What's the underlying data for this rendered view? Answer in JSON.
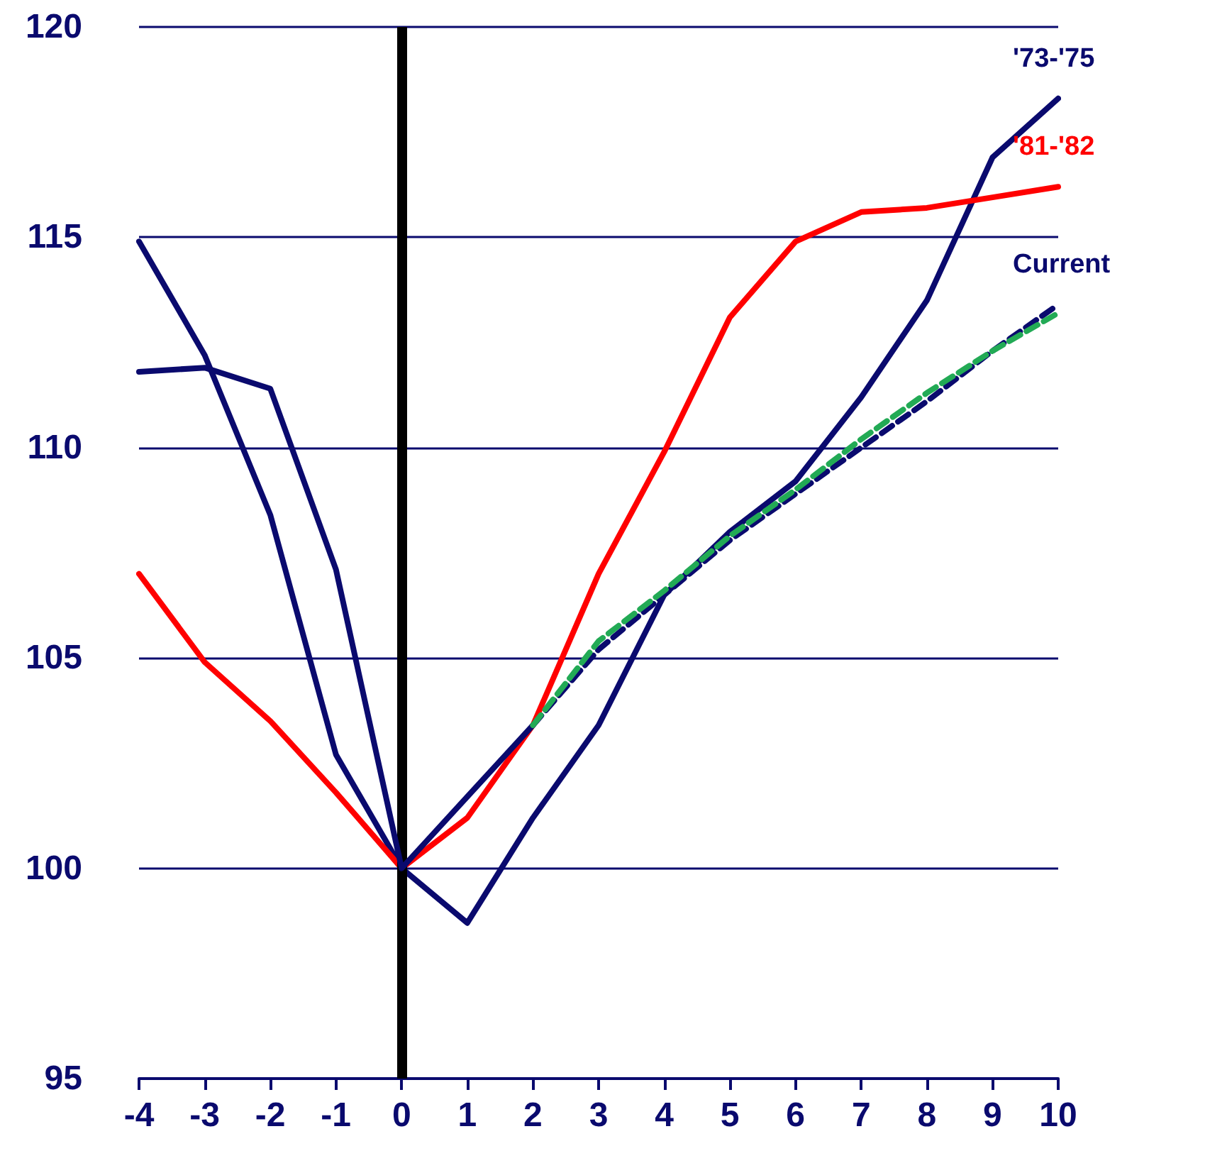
{
  "chart_data": {
    "type": "line",
    "x": [
      -4,
      -3,
      -2,
      -1,
      0,
      1,
      2,
      3,
      4,
      5,
      6,
      7,
      8,
      9,
      10
    ],
    "series": [
      {
        "name": "'73-'75",
        "color": "#0a0a6e",
        "values": [
          114.9,
          112.2,
          108.4,
          102.7,
          100,
          98.7,
          101.2,
          103.4,
          106.5,
          108,
          109.2,
          111.2,
          113.5,
          116.9,
          118.3
        ]
      },
      {
        "name": "'81-'82",
        "color": "#ff0000",
        "values": [
          107,
          104.9,
          103.5,
          101.8,
          100,
          101.2,
          103.4,
          107,
          109.9,
          113.1,
          114.9,
          115.6,
          115.7,
          115.95,
          116.2
        ]
      },
      {
        "color": "#0a0a6e",
        "values": [
          111.8,
          111.9,
          111.4,
          107.1,
          100,
          101.7,
          103.4,
          null,
          null,
          null,
          null,
          null,
          null,
          null,
          null
        ]
      },
      {
        "color": "#22aa55",
        "line_style": "dashed",
        "values": [
          null,
          null,
          null,
          null,
          null,
          null,
          103.4,
          105.4,
          106.6,
          107.9,
          109,
          110.2,
          111.3,
          112.3,
          113.2
        ]
      },
      {
        "name": "Current",
        "color": "#0a0a6e",
        "line_style": "dashed",
        "values": [
          null,
          null,
          null,
          null,
          null,
          null,
          103.4,
          105.2,
          106.5,
          107.8,
          108.9,
          110,
          111.1,
          112.3,
          113.4
        ]
      }
    ],
    "xlim": [
      -4,
      10
    ],
    "xticks": [
      -4,
      -3,
      -2,
      -1,
      0,
      1,
      2,
      3,
      4,
      5,
      6,
      7,
      8,
      9,
      10
    ],
    "ylim": [
      95,
      120
    ],
    "yticks": [
      95,
      100,
      105,
      110,
      115,
      120
    ],
    "grid": "y",
    "marker": "none",
    "line_style": "solid",
    "legend": false,
    "ref_lines": [
      {
        "axis": "x",
        "value": 0,
        "color": "#000000"
      }
    ]
  }
}
